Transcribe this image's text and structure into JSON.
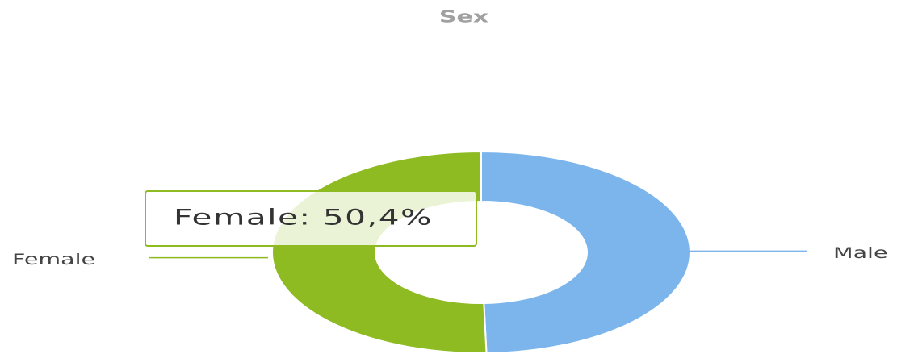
{
  "chart_data": {
    "type": "donut",
    "title": "Sex",
    "categories": [
      "Male",
      "Female"
    ],
    "values": [
      49.6,
      50.4
    ],
    "colors": [
      "#7cb5ec",
      "#8fbb22"
    ],
    "tooltip": "Female: 50,4%"
  }
}
